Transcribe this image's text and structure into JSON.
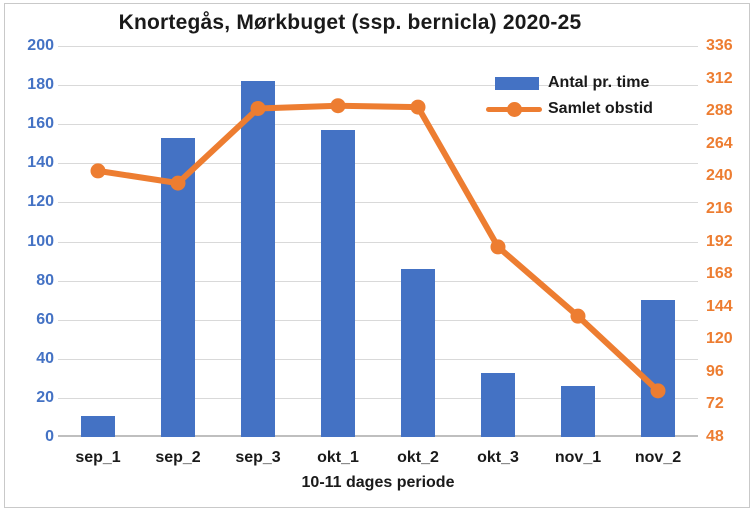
{
  "title": "Knortegås, Mørkbuget (ssp. bernicla) 2020-25",
  "xlabel": "10-11 dages periode",
  "legend": {
    "bar_label": "Antal pr. time",
    "line_label": "Samlet obstid"
  },
  "left_axis": {
    "ticks": [
      "200",
      "180",
      "160",
      "140",
      "120",
      "100",
      "80",
      "60",
      "40",
      "20",
      "0"
    ],
    "color": "#4472C4"
  },
  "right_axis": {
    "ticks": [
      "336",
      "312",
      "288",
      "264",
      "240",
      "216",
      "192",
      "168",
      "144",
      "120",
      "96",
      "72",
      "48"
    ],
    "color": "#ED7D31"
  },
  "colors": {
    "bar": "#4472C4",
    "line": "#ED7D31",
    "gridline": "#D9D9D9",
    "axis_line": "#BFBFBF",
    "text": "#1A1A1A",
    "frame_border": "#C9C9C9"
  },
  "chart_data": {
    "type": "bar",
    "subtype": "combo-bar-line-dual-axis",
    "title": "Knortegås, Mørkbuget (ssp. bernicla) 2020-25",
    "xlabel": "10-11 dages periode",
    "ylabel": "",
    "categories": [
      "sep_1",
      "sep_2",
      "sep_3",
      "okt_1",
      "okt_2",
      "okt_3",
      "nov_1",
      "nov_2"
    ],
    "series": [
      {
        "name": "Antal pr. time",
        "type": "bar",
        "axis": "left",
        "color": "#4472C4",
        "values": [
          11,
          153,
          182,
          157,
          86,
          33,
          26,
          70
        ]
      },
      {
        "name": "Samlet obstid",
        "type": "line",
        "axis": "right",
        "color": "#ED7D31",
        "marker": "circle",
        "values": [
          244,
          235,
          290,
          292,
          291,
          188,
          137,
          82
        ]
      }
    ],
    "left_ylim": [
      0,
      200
    ],
    "left_step": 20,
    "right_ylim": [
      48,
      336
    ],
    "right_step": 24,
    "grid": true,
    "legend_position": "inside-top-right"
  }
}
